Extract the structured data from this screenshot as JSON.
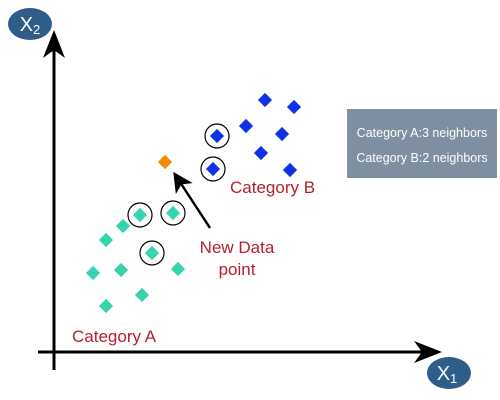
{
  "axes": {
    "x_label_main": "X",
    "x_label_sub": "1",
    "y_label_main": "X",
    "y_label_sub": "2",
    "badge_color": "#2f5d8a",
    "axis_color": "#000000"
  },
  "categories": {
    "a": {
      "label": "Category A",
      "color": "#35d3b0",
      "label_color": "#b5202a",
      "points": [
        {
          "encircled": true
        },
        {
          "encircled": true
        },
        {
          "encircled": true
        },
        {
          "encircled": false
        },
        {
          "encircled": false
        },
        {
          "encircled": false
        },
        {
          "encircled": false
        },
        {
          "encircled": false
        },
        {
          "encircled": false
        },
        {
          "encircled": false
        }
      ]
    },
    "b": {
      "label": "Category B",
      "color": "#1032e6",
      "label_color": "#b5202a",
      "points": [
        {
          "encircled": true
        },
        {
          "encircled": true
        },
        {
          "encircled": false
        },
        {
          "encircled": false
        },
        {
          "encircled": false
        },
        {
          "encircled": false
        },
        {
          "encircled": false
        },
        {
          "encircled": false
        }
      ]
    }
  },
  "new_point": {
    "label_line1": "New Data",
    "label_line2": "point",
    "color": "#f08a00",
    "label_color": "#b5202a"
  },
  "info_box": {
    "line1": "Category A:3 neighbors",
    "line2": "Category B:2 neighbors",
    "background": "#7d8fa0",
    "text_color": "#ffffff"
  }
}
